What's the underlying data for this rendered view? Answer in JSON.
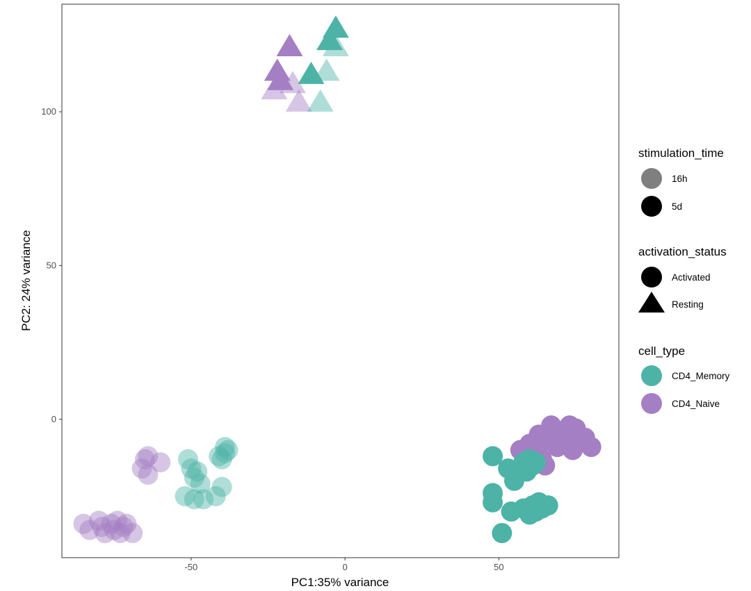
{
  "chart_data": {
    "type": "scatter",
    "xlabel": "PC1:35% variance",
    "ylabel": "PC2: 24% variance",
    "xlim": [
      -92,
      89
    ],
    "ylim": [
      -45,
      135
    ],
    "x_ticks": [
      -50,
      0,
      50
    ],
    "y_ticks": [
      0,
      50,
      100
    ],
    "tick_labels": {
      "x": [
        "-50",
        "0",
        "50"
      ],
      "y": [
        "0",
        "50",
        "100"
      ]
    },
    "grid": false,
    "colors": {
      "CD4_Memory": "#4db3a6",
      "CD4_Naive": "#a47fc3"
    },
    "legend_position": "right",
    "legend": {
      "stimulation_time": {
        "title": "stimulation_time",
        "entries": [
          "16h",
          "5d"
        ]
      },
      "activation_status": {
        "title": "activation_status",
        "entries": [
          "Activated",
          "Resting"
        ]
      },
      "cell_type": {
        "title": "cell_type",
        "entries": [
          "CD4_Memory",
          "CD4_Naive"
        ]
      }
    },
    "series": [
      {
        "name": "CD4_Naive / Activated / 16h",
        "cell_type": "CD4_Naive",
        "activation_status": "Activated",
        "stimulation_time": "16h",
        "points": [
          [
            -85,
            -34
          ],
          [
            -83,
            -36
          ],
          [
            -80,
            -33
          ],
          [
            -79,
            -35
          ],
          [
            -78,
            -37
          ],
          [
            -76,
            -34
          ],
          [
            -75,
            -36
          ],
          [
            -74,
            -33
          ],
          [
            -73,
            -37
          ],
          [
            -72,
            -35
          ],
          [
            -71,
            -34
          ],
          [
            -69,
            -37
          ],
          [
            -65,
            -13
          ],
          [
            -64,
            -12
          ],
          [
            -66,
            -16
          ],
          [
            -64,
            -18
          ],
          [
            -60,
            -14
          ]
        ]
      },
      {
        "name": "CD4_Memory / Activated / 16h",
        "cell_type": "CD4_Memory",
        "activation_status": "Activated",
        "stimulation_time": "16h",
        "points": [
          [
            -51,
            -13
          ],
          [
            -50,
            -16
          ],
          [
            -48,
            -17
          ],
          [
            -49,
            -19
          ],
          [
            -47,
            -21
          ],
          [
            -52,
            -25
          ],
          [
            -49,
            -26
          ],
          [
            -46,
            -26
          ],
          [
            -42,
            -25
          ],
          [
            -40,
            -22
          ],
          [
            -41,
            -12
          ],
          [
            -40,
            -13
          ],
          [
            -39,
            -11
          ],
          [
            -38,
            -10
          ],
          [
            -39,
            -9
          ]
        ]
      },
      {
        "name": "CD4_Naive / Activated / 5d",
        "cell_type": "CD4_Naive",
        "activation_status": "Activated",
        "stimulation_time": "5d",
        "points": [
          [
            57,
            -10
          ],
          [
            60,
            -8
          ],
          [
            61,
            -11
          ],
          [
            63,
            -5
          ],
          [
            64,
            -13
          ],
          [
            65,
            -15
          ],
          [
            66,
            -7
          ],
          [
            67,
            -2
          ],
          [
            69,
            -9
          ],
          [
            70,
            -4
          ],
          [
            71,
            -6
          ],
          [
            73,
            -2
          ],
          [
            74,
            -10
          ],
          [
            75,
            -3
          ],
          [
            76,
            -7
          ],
          [
            78,
            -6
          ],
          [
            80,
            -9
          ]
        ]
      },
      {
        "name": "CD4_Memory / Activated / 5d",
        "cell_type": "CD4_Memory",
        "activation_status": "Activated",
        "stimulation_time": "5d",
        "points": [
          [
            48,
            -12
          ],
          [
            48,
            -24
          ],
          [
            48,
            -27
          ],
          [
            51,
            -37
          ],
          [
            53,
            -16
          ],
          [
            55,
            -18
          ],
          [
            55,
            -20
          ],
          [
            57,
            -16
          ],
          [
            58,
            -14
          ],
          [
            59,
            -17
          ],
          [
            60,
            -13
          ],
          [
            61,
            -15
          ],
          [
            62,
            -14
          ],
          [
            54,
            -30
          ],
          [
            58,
            -29
          ],
          [
            60,
            -31
          ],
          [
            61,
            -28
          ],
          [
            62,
            -30
          ],
          [
            63,
            -27
          ],
          [
            64,
            -29
          ],
          [
            65,
            -28
          ],
          [
            66,
            -28
          ]
        ]
      },
      {
        "name": "CD4_Naive / Resting / 16h",
        "cell_type": "CD4_Naive",
        "activation_status": "Resting",
        "stimulation_time": "16h",
        "points": [
          [
            -23,
            107
          ],
          [
            -17,
            109
          ],
          [
            -15,
            103
          ]
        ]
      },
      {
        "name": "CD4_Memory / Resting / 16h",
        "cell_type": "CD4_Memory",
        "activation_status": "Resting",
        "stimulation_time": "16h",
        "points": [
          [
            -8,
            103
          ],
          [
            -6,
            113
          ],
          [
            -3,
            121
          ]
        ]
      },
      {
        "name": "CD4_Naive / Resting / 5d",
        "cell_type": "CD4_Naive",
        "activation_status": "Resting",
        "stimulation_time": "5d",
        "points": [
          [
            -18,
            121
          ],
          [
            -22,
            113
          ],
          [
            -21,
            110
          ]
        ]
      },
      {
        "name": "CD4_Memory / Resting / 5d",
        "cell_type": "CD4_Memory",
        "activation_status": "Resting",
        "stimulation_time": "5d",
        "points": [
          [
            -11,
            112
          ],
          [
            -5,
            123
          ],
          [
            -3,
            127
          ]
        ]
      }
    ]
  }
}
